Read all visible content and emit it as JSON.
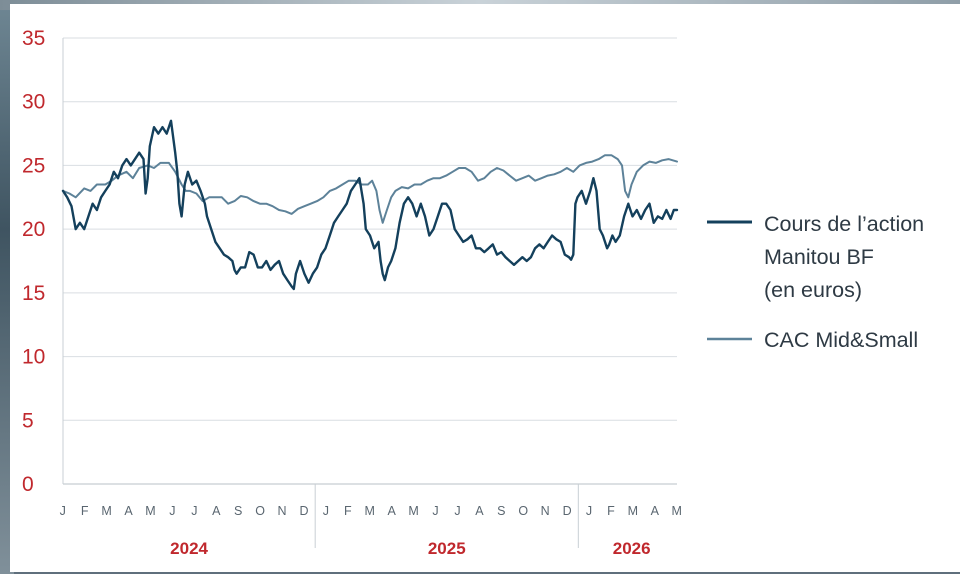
{
  "chart_data": {
    "type": "line",
    "title": "",
    "xlabel": "",
    "ylabel": "",
    "ylim": [
      0,
      35
    ],
    "yticks": [
      "0",
      "5",
      "10",
      "15",
      "20",
      "25",
      "30",
      "35"
    ],
    "grid": true,
    "legend_position": "right",
    "month_labels": [
      "J",
      "F",
      "M",
      "A",
      "M",
      "J",
      "J",
      "A",
      "S",
      "O",
      "N",
      "D",
      "J",
      "F",
      "M",
      "A",
      "M",
      "J",
      "J",
      "A",
      "S",
      "O",
      "N",
      "D",
      "J",
      "F",
      "M",
      "A",
      "M"
    ],
    "years": [
      {
        "label": "2024",
        "from_month": 0,
        "to_month": 12
      },
      {
        "label": "2025",
        "from_month": 12,
        "to_month": 24
      },
      {
        "label": "2026",
        "from_month": 24,
        "to_month": 29
      }
    ],
    "x_unit": "months since start of 2024",
    "series": [
      {
        "name": "Cours de l’action\nManitou BF\n(en euros)",
        "color": "#14405c",
        "points": [
          [
            0.0,
            23.0
          ],
          [
            0.2,
            22.5
          ],
          [
            0.4,
            21.8
          ],
          [
            0.6,
            20.0
          ],
          [
            0.8,
            20.5
          ],
          [
            1.0,
            20.0
          ],
          [
            1.2,
            21.0
          ],
          [
            1.4,
            22.0
          ],
          [
            1.6,
            21.5
          ],
          [
            1.8,
            22.5
          ],
          [
            2.0,
            23.0
          ],
          [
            2.2,
            23.5
          ],
          [
            2.4,
            24.5
          ],
          [
            2.6,
            24.0
          ],
          [
            2.8,
            25.0
          ],
          [
            3.0,
            25.5
          ],
          [
            3.2,
            25.0
          ],
          [
            3.4,
            25.5
          ],
          [
            3.6,
            26.0
          ],
          [
            3.8,
            25.5
          ],
          [
            3.9,
            22.8
          ],
          [
            4.0,
            24.0
          ],
          [
            4.1,
            26.5
          ],
          [
            4.3,
            28.0
          ],
          [
            4.5,
            27.5
          ],
          [
            4.7,
            28.0
          ],
          [
            4.9,
            27.5
          ],
          [
            5.1,
            28.5
          ],
          [
            5.3,
            26.0
          ],
          [
            5.4,
            24.5
          ],
          [
            5.5,
            22.0
          ],
          [
            5.6,
            21.0
          ],
          [
            5.75,
            23.5
          ],
          [
            5.9,
            24.5
          ],
          [
            6.1,
            23.5
          ],
          [
            6.3,
            23.8
          ],
          [
            6.5,
            23.0
          ],
          [
            6.7,
            22.0
          ],
          [
            6.8,
            21.0
          ],
          [
            6.9,
            20.5
          ],
          [
            7.0,
            20.0
          ],
          [
            7.2,
            19.0
          ],
          [
            7.4,
            18.5
          ],
          [
            7.6,
            18.0
          ],
          [
            7.8,
            17.8
          ],
          [
            8.0,
            17.5
          ],
          [
            8.1,
            16.8
          ],
          [
            8.2,
            16.5
          ],
          [
            8.4,
            17.0
          ],
          [
            8.6,
            17.0
          ],
          [
            8.8,
            18.2
          ],
          [
            9.0,
            18.0
          ],
          [
            9.2,
            17.0
          ],
          [
            9.4,
            17.0
          ],
          [
            9.6,
            17.5
          ],
          [
            9.8,
            16.8
          ],
          [
            10.0,
            17.2
          ],
          [
            10.2,
            17.5
          ],
          [
            10.4,
            16.5
          ],
          [
            10.6,
            16.0
          ],
          [
            10.8,
            15.5
          ],
          [
            10.9,
            15.3
          ],
          [
            11.0,
            16.5
          ],
          [
            11.2,
            17.5
          ],
          [
            11.4,
            16.5
          ],
          [
            11.6,
            15.8
          ],
          [
            11.8,
            16.5
          ],
          [
            12.0,
            17.0
          ],
          [
            12.2,
            18.0
          ],
          [
            12.4,
            18.5
          ],
          [
            12.6,
            19.5
          ],
          [
            12.8,
            20.5
          ],
          [
            13.0,
            21.0
          ],
          [
            13.2,
            21.5
          ],
          [
            13.4,
            22.0
          ],
          [
            13.6,
            23.0
          ],
          [
            13.8,
            23.5
          ],
          [
            14.0,
            24.0
          ],
          [
            14.1,
            23.0
          ],
          [
            14.2,
            22.0
          ],
          [
            14.3,
            20.0
          ],
          [
            14.5,
            19.5
          ],
          [
            14.7,
            18.5
          ],
          [
            14.9,
            19.0
          ],
          [
            15.0,
            17.5
          ],
          [
            15.1,
            16.5
          ],
          [
            15.2,
            16.0
          ],
          [
            15.35,
            17.0
          ],
          [
            15.5,
            17.5
          ],
          [
            15.7,
            18.5
          ],
          [
            15.9,
            20.5
          ],
          [
            16.1,
            22.0
          ],
          [
            16.3,
            22.5
          ],
          [
            16.5,
            22.0
          ],
          [
            16.7,
            21.0
          ],
          [
            16.9,
            22.0
          ],
          [
            17.1,
            21.0
          ],
          [
            17.3,
            19.5
          ],
          [
            17.5,
            20.0
          ],
          [
            17.7,
            21.0
          ],
          [
            17.9,
            22.0
          ],
          [
            18.1,
            22.0
          ],
          [
            18.3,
            21.5
          ],
          [
            18.5,
            20.0
          ],
          [
            18.7,
            19.5
          ],
          [
            18.9,
            19.0
          ],
          [
            19.1,
            19.2
          ],
          [
            19.3,
            19.5
          ],
          [
            19.5,
            18.5
          ],
          [
            19.7,
            18.5
          ],
          [
            19.9,
            18.2
          ],
          [
            20.1,
            18.5
          ],
          [
            20.3,
            18.8
          ],
          [
            20.5,
            18.0
          ],
          [
            20.7,
            18.2
          ],
          [
            20.9,
            17.8
          ],
          [
            21.1,
            17.5
          ],
          [
            21.3,
            17.2
          ],
          [
            21.5,
            17.5
          ],
          [
            21.7,
            17.8
          ],
          [
            21.9,
            17.5
          ],
          [
            22.1,
            17.8
          ],
          [
            22.3,
            18.5
          ],
          [
            22.5,
            18.8
          ],
          [
            22.7,
            18.5
          ],
          [
            22.9,
            19.0
          ],
          [
            23.1,
            19.5
          ],
          [
            23.3,
            19.2
          ],
          [
            23.5,
            19.0
          ],
          [
            23.7,
            18.0
          ],
          [
            23.9,
            17.8
          ],
          [
            24.0,
            17.6
          ],
          [
            24.1,
            18.0
          ],
          [
            24.2,
            22.0
          ],
          [
            24.3,
            22.5
          ],
          [
            24.5,
            23.0
          ],
          [
            24.7,
            22.0
          ],
          [
            24.9,
            23.0
          ],
          [
            25.05,
            24.0
          ],
          [
            25.2,
            23.0
          ],
          [
            25.35,
            20.0
          ],
          [
            25.5,
            19.5
          ],
          [
            25.6,
            19.0
          ],
          [
            25.7,
            18.5
          ],
          [
            25.8,
            18.8
          ],
          [
            25.95,
            19.5
          ],
          [
            26.1,
            19.0
          ],
          [
            26.3,
            19.5
          ],
          [
            26.5,
            21.0
          ],
          [
            26.7,
            22.0
          ],
          [
            26.9,
            21.0
          ],
          [
            27.1,
            21.5
          ],
          [
            27.3,
            20.8
          ],
          [
            27.5,
            21.5
          ],
          [
            27.7,
            22.0
          ],
          [
            27.9,
            20.5
          ],
          [
            28.1,
            21.0
          ],
          [
            28.3,
            20.8
          ],
          [
            28.5,
            21.5
          ],
          [
            28.7,
            20.8
          ],
          [
            28.85,
            21.5
          ],
          [
            29.0,
            21.5
          ]
        ]
      },
      {
        "name": "CAC Mid&Small",
        "color": "#5d8299",
        "points": [
          [
            0.0,
            23.0
          ],
          [
            0.3,
            22.8
          ],
          [
            0.6,
            22.5
          ],
          [
            1.0,
            23.2
          ],
          [
            1.3,
            23.0
          ],
          [
            1.6,
            23.5
          ],
          [
            2.0,
            23.5
          ],
          [
            2.3,
            23.8
          ],
          [
            2.6,
            24.2
          ],
          [
            3.0,
            24.5
          ],
          [
            3.3,
            24.0
          ],
          [
            3.6,
            24.8
          ],
          [
            4.0,
            25.0
          ],
          [
            4.3,
            24.8
          ],
          [
            4.6,
            25.2
          ],
          [
            5.0,
            25.2
          ],
          [
            5.3,
            24.5
          ],
          [
            5.6,
            23.5
          ],
          [
            5.8,
            23.0
          ],
          [
            6.0,
            23.0
          ],
          [
            6.3,
            22.8
          ],
          [
            6.6,
            22.2
          ],
          [
            6.9,
            22.5
          ],
          [
            7.2,
            22.5
          ],
          [
            7.5,
            22.5
          ],
          [
            7.8,
            22.0
          ],
          [
            8.1,
            22.2
          ],
          [
            8.4,
            22.6
          ],
          [
            8.7,
            22.5
          ],
          [
            9.0,
            22.2
          ],
          [
            9.3,
            22.0
          ],
          [
            9.6,
            22.0
          ],
          [
            9.9,
            21.8
          ],
          [
            10.2,
            21.5
          ],
          [
            10.5,
            21.4
          ],
          [
            10.8,
            21.2
          ],
          [
            11.1,
            21.6
          ],
          [
            11.4,
            21.8
          ],
          [
            11.7,
            22.0
          ],
          [
            12.0,
            22.2
          ],
          [
            12.3,
            22.5
          ],
          [
            12.6,
            23.0
          ],
          [
            12.9,
            23.2
          ],
          [
            13.2,
            23.5
          ],
          [
            13.5,
            23.8
          ],
          [
            13.8,
            23.8
          ],
          [
            14.1,
            23.5
          ],
          [
            14.4,
            23.5
          ],
          [
            14.6,
            23.8
          ],
          [
            14.8,
            23.0
          ],
          [
            14.95,
            21.5
          ],
          [
            15.1,
            20.5
          ],
          [
            15.3,
            21.5
          ],
          [
            15.5,
            22.5
          ],
          [
            15.7,
            23.0
          ],
          [
            16.0,
            23.3
          ],
          [
            16.3,
            23.2
          ],
          [
            16.6,
            23.5
          ],
          [
            16.9,
            23.5
          ],
          [
            17.2,
            23.8
          ],
          [
            17.5,
            24.0
          ],
          [
            17.8,
            24.0
          ],
          [
            18.1,
            24.2
          ],
          [
            18.4,
            24.5
          ],
          [
            18.7,
            24.8
          ],
          [
            19.0,
            24.8
          ],
          [
            19.3,
            24.5
          ],
          [
            19.6,
            23.8
          ],
          [
            19.9,
            24.0
          ],
          [
            20.2,
            24.5
          ],
          [
            20.5,
            24.8
          ],
          [
            20.8,
            24.6
          ],
          [
            21.1,
            24.2
          ],
          [
            21.4,
            23.8
          ],
          [
            21.7,
            24.0
          ],
          [
            22.0,
            24.2
          ],
          [
            22.3,
            23.8
          ],
          [
            22.6,
            24.0
          ],
          [
            22.9,
            24.2
          ],
          [
            23.2,
            24.3
          ],
          [
            23.5,
            24.5
          ],
          [
            23.8,
            24.8
          ],
          [
            24.1,
            24.5
          ],
          [
            24.4,
            25.0
          ],
          [
            24.7,
            25.2
          ],
          [
            25.0,
            25.3
          ],
          [
            25.3,
            25.5
          ],
          [
            25.6,
            25.8
          ],
          [
            25.9,
            25.8
          ],
          [
            26.2,
            25.5
          ],
          [
            26.4,
            25.0
          ],
          [
            26.55,
            23.0
          ],
          [
            26.7,
            22.5
          ],
          [
            26.85,
            23.5
          ],
          [
            27.1,
            24.5
          ],
          [
            27.4,
            25.0
          ],
          [
            27.7,
            25.3
          ],
          [
            28.0,
            25.2
          ],
          [
            28.3,
            25.4
          ],
          [
            28.6,
            25.5
          ],
          [
            29.0,
            25.3
          ]
        ]
      }
    ]
  }
}
